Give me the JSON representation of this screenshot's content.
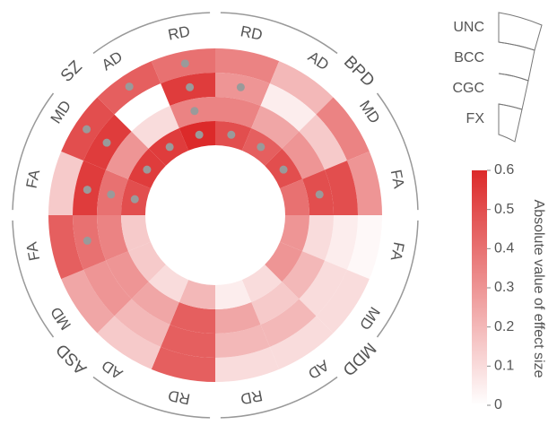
{
  "chart_data": {
    "type": "polar_heatmap",
    "rings": [
      "UNC",
      "BCC",
      "CGC",
      "FX"
    ],
    "colorbar_title": "Absolute value of effect size",
    "clim": [
      0,
      0.6
    ],
    "cticks": [
      0,
      0.1,
      0.2,
      0.3,
      0.4,
      0.5,
      0.6
    ],
    "color_low": "#ffffff",
    "color_high": "#dc2a2a",
    "groups": [
      {
        "name": "BPD",
        "metrics": [
          {
            "name": "RD",
            "values": [
              0.35,
              0.3,
              0.35,
              0.5
            ],
            "significant": [
              false,
              true,
              false,
              true
            ]
          },
          {
            "name": "AD",
            "values": [
              0.2,
              0.05,
              0.25,
              0.45
            ],
            "significant": [
              false,
              false,
              false,
              true
            ]
          },
          {
            "name": "MD",
            "values": [
              0.35,
              0.15,
              0.3,
              0.5
            ],
            "significant": [
              false,
              false,
              false,
              true
            ]
          },
          {
            "name": "FA",
            "values": [
              0.3,
              0.5,
              0.5,
              0.4
            ],
            "significant": [
              false,
              false,
              true,
              false
            ]
          }
        ]
      },
      {
        "name": "MDD",
        "metrics": [
          {
            "name": "FA",
            "values": [
              0.02,
              0.05,
              0.1,
              0.3
            ],
            "significant": [
              false,
              false,
              false,
              false
            ]
          },
          {
            "name": "MD",
            "values": [
              0.1,
              0.1,
              0.2,
              0.3
            ],
            "significant": [
              false,
              false,
              false,
              false
            ]
          },
          {
            "name": "AD",
            "values": [
              0.1,
              0.2,
              0.15,
              0.1
            ],
            "significant": [
              false,
              false,
              false,
              false
            ]
          },
          {
            "name": "RD",
            "values": [
              0.1,
              0.2,
              0.25,
              0.05
            ],
            "significant": [
              false,
              false,
              false,
              false
            ]
          }
        ]
      },
      {
        "name": "ASD",
        "metrics": [
          {
            "name": "RD",
            "values": [
              0.45,
              0.45,
              0.45,
              0.2
            ],
            "significant": [
              false,
              false,
              false,
              false
            ]
          },
          {
            "name": "AD",
            "values": [
              0.15,
              0.2,
              0.25,
              0.1
            ],
            "significant": [
              false,
              false,
              false,
              false
            ]
          },
          {
            "name": "MD",
            "values": [
              0.25,
              0.3,
              0.3,
              0.15
            ],
            "significant": [
              false,
              false,
              false,
              false
            ]
          },
          {
            "name": "FA",
            "values": [
              0.45,
              0.4,
              0.35,
              0.15
            ],
            "significant": [
              false,
              true,
              false,
              false
            ]
          }
        ]
      },
      {
        "name": "SZ",
        "metrics": [
          {
            "name": "FA",
            "values": [
              0.15,
              0.55,
              0.4,
              0.5
            ],
            "significant": [
              false,
              true,
              true,
              true
            ]
          },
          {
            "name": "MD",
            "values": [
              0.5,
              0.55,
              0.3,
              0.55
            ],
            "significant": [
              true,
              true,
              false,
              true
            ]
          },
          {
            "name": "AD",
            "values": [
              0.45,
              0.0,
              0.1,
              0.55
            ],
            "significant": [
              true,
              false,
              false,
              true
            ]
          },
          {
            "name": "RD",
            "values": [
              0.4,
              0.55,
              0.35,
              0.6
            ],
            "significant": [
              true,
              true,
              true,
              true
            ]
          }
        ]
      }
    ]
  }
}
